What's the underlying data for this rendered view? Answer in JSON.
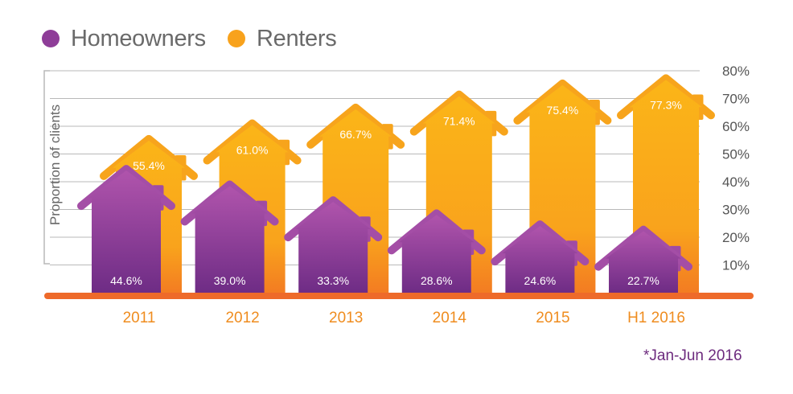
{
  "colors": {
    "homeowners": "#8e3d98",
    "renters": "#f8a21c",
    "baseline": "#ee6a2a",
    "grid": "#b9b9b9",
    "axis_text": "#555555",
    "category_text": "#ef8c1e",
    "footnote": "#6d2b7e"
  },
  "legend": [
    {
      "name": "Homeowners",
      "color": "#8e3d98"
    },
    {
      "name": "Renters",
      "color": "#f8a21c"
    }
  ],
  "footnote": "*Jan-Jun 2016",
  "chart_data": {
    "type": "bar",
    "ylabel": "Proportion of clients",
    "ylim": [
      0,
      80
    ],
    "y_ticks": [
      "10%",
      "20%",
      "30%",
      "40%",
      "50%",
      "60%",
      "70%",
      "80%"
    ],
    "y_axis_position": "right",
    "grid": true,
    "legend_position": "top-left",
    "categories": [
      "2011",
      "2012",
      "2013",
      "2014",
      "2015",
      "H1 2016"
    ],
    "series": [
      {
        "name": "Homeowners",
        "values": [
          44.6,
          39.0,
          33.3,
          28.6,
          24.6,
          22.7
        ],
        "labels": [
          "44.6%",
          "39.0%",
          "33.3%",
          "28.6%",
          "24.6%",
          "22.7%"
        ]
      },
      {
        "name": "Renters",
        "values": [
          55.4,
          61.0,
          66.7,
          71.4,
          75.4,
          77.3
        ],
        "labels": [
          "55.4%",
          "61.0%",
          "66.7%",
          "71.4%",
          "75.4%",
          "77.3%"
        ]
      }
    ]
  }
}
